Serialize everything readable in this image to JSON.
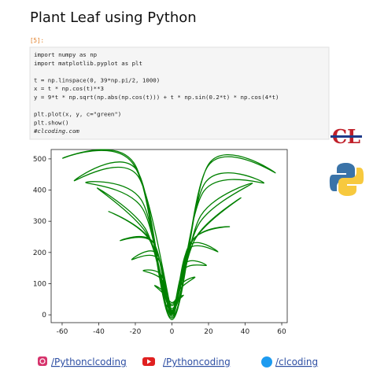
{
  "header": {
    "title": "Plant Leaf using Python"
  },
  "cell": {
    "prompt": "[5]:",
    "code": [
      [
        "import numpy as np",
        "import matplotlib.pyplot as plt"
      ],
      [
        "t = np.linspace(0, 39*np.pi/2, 1000)",
        "x = t * np.cos(t)**3",
        "y = 9*t * np.sqrt(np.abs(np.cos(t))) + t * np.sin(0.2*t) * np.cos(4*t)"
      ],
      [
        "plt.plot(x, y, c=\"green\")",
        "plt.show()",
        "#clcoding.com"
      ]
    ]
  },
  "logo": {
    "text": "CL"
  },
  "chart_data": {
    "type": "line",
    "color": "green",
    "x": [
      0,
      0.28,
      0,
      -0.83,
      -3.14,
      -1.39,
      0,
      1.94,
      6.28,
      2.5,
      0,
      -3.06,
      -9.42,
      -3.61,
      0,
      4.17,
      12.57,
      4.72,
      0,
      -5.28,
      -15.71,
      -5.83,
      0,
      6.39,
      18.85,
      6.94,
      0,
      -7.5,
      -21.99,
      -8.05,
      0,
      8.61,
      25.13,
      9.16,
      0,
      -9.72,
      -28.27,
      -10.27,
      0,
      10.83,
      31.42,
      11.39,
      0,
      -11.94,
      -34.56,
      -12.5,
      0,
      13.05,
      37.7,
      13.61,
      0,
      -14.16,
      -40.84,
      -14.72,
      0,
      15.27,
      43.98,
      15.83,
      0,
      -16.38,
      -47.12,
      -16.94,
      0,
      17.49,
      50.27,
      18.05,
      0,
      -18.61,
      -53.41,
      -19.16,
      0,
      19.72,
      56.55,
      20.27,
      0,
      -20.83,
      -59.69,
      -21.38,
      0
    ],
    "values": [
      0,
      5.8,
      0.5,
      16.8,
      30.1,
      26.9,
      3.8,
      36.7,
      62.5,
      46.5,
      7.9,
      56.8,
      93.8,
      68.2,
      8.9,
      80.8,
      120.5,
      95,
      4.4,
      110.6,
      141.4,
      127.4,
      10,
      144.9,
      158.6,
      162.5,
      5,
      179.4,
      177,
      194.9,
      0,
      208.3,
      202.3,
      219.3,
      -5,
      227.5,
      237.8,
      233.1,
      15,
      236.6,
      282.7,
      238.7,
      10.2,
      240.3,
      331.3,
      242.5,
      29.2,
      246.4,
      375.2,
      253.2,
      39.3,
      263.6,
      406.4,
      278,
      34.3,
      296.4,
      421.7,
      318.5,
      14.1,
      343.5,
      424.1,
      370.1,
      20,
      396.9,
      422.8,
      422.5,
      -5,
      445.1,
      429.9,
      463.6,
      -15,
      477.1,
      455.2,
      485,
      -10,
      487.4,
      502.1,
      485.2,
      5
    ],
    "xlim": [
      -66,
      63
    ],
    "xticks": [
      -60,
      -40,
      -20,
      0,
      20,
      40,
      60
    ],
    "ylim": [
      -25,
      530
    ],
    "yticks": [
      0,
      100,
      200,
      300,
      400,
      500
    ]
  },
  "footer": {
    "links": [
      "/Pythonclcoding",
      "/Pythoncoding",
      "/clcoding"
    ]
  }
}
